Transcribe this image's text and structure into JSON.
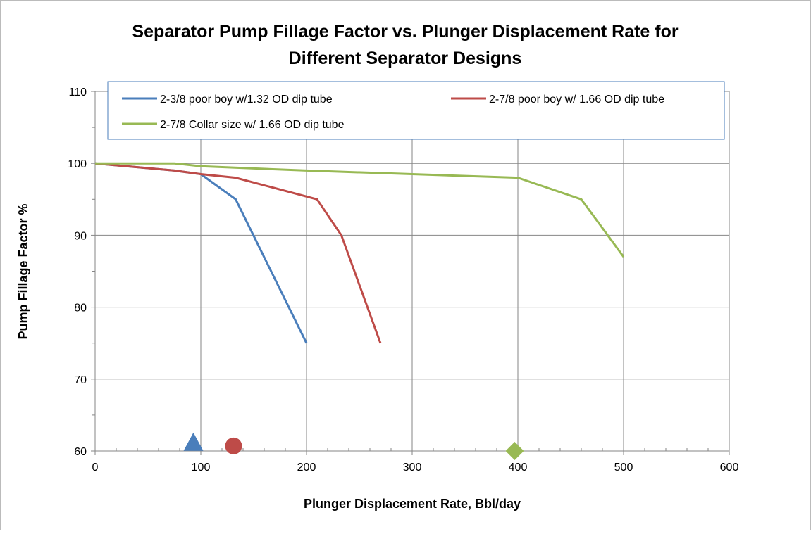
{
  "chart_data": {
    "type": "line",
    "title": [
      "Separator Pump Fillage Factor vs. Plunger Displacement Rate for",
      "Different Separator Designs"
    ],
    "x_label": "Plunger Displacement Rate, Bbl/day",
    "y_label": "Pump Fillage Factor  %",
    "xlim": [
      0,
      600
    ],
    "ylim": [
      60,
      110
    ],
    "xticks": [
      0,
      100,
      200,
      300,
      400,
      500,
      600
    ],
    "yticks": [
      60,
      70,
      80,
      90,
      100,
      110
    ],
    "xminorticks": [
      20,
      40,
      60,
      80,
      120,
      140,
      160,
      180,
      220,
      240,
      260,
      280,
      320,
      340,
      360,
      380,
      420,
      440,
      460,
      480,
      520,
      540,
      560,
      580
    ],
    "yminorticks": [
      65,
      75,
      85,
      95,
      105
    ],
    "grid": true,
    "legend": "top",
    "series": [
      {
        "name": "2-3/8 poor boy w/1.32  OD dip tube",
        "color": "#4a7ebb",
        "x": [
          0,
          75,
          100,
          133,
          200
        ],
        "values": [
          100,
          99,
          98.5,
          95,
          75
        ]
      },
      {
        "name": "2-7/8 poor boy w/ 1.66 OD dip tube",
        "color": "#be4b48",
        "x": [
          0,
          75,
          100,
          133,
          210,
          233,
          270
        ],
        "values": [
          100,
          99,
          98.5,
          98,
          95,
          90,
          75
        ]
      },
      {
        "name": "2-7/8 Collar size w/ 1.66 OD dip tube",
        "color": "#98b954",
        "x": [
          0,
          75,
          100,
          200,
          400,
          460,
          500
        ],
        "values": [
          100,
          100,
          99.6,
          99,
          98,
          95,
          87
        ]
      }
    ],
    "markers": [
      {
        "shape": "triangle",
        "color": "#4a7ebb",
        "x": 93,
        "y": 61
      },
      {
        "shape": "circle",
        "color": "#be4b48",
        "x": 131,
        "y": 60.7
      },
      {
        "shape": "diamond",
        "color": "#98b954",
        "x": 397,
        "y": 60
      }
    ]
  }
}
